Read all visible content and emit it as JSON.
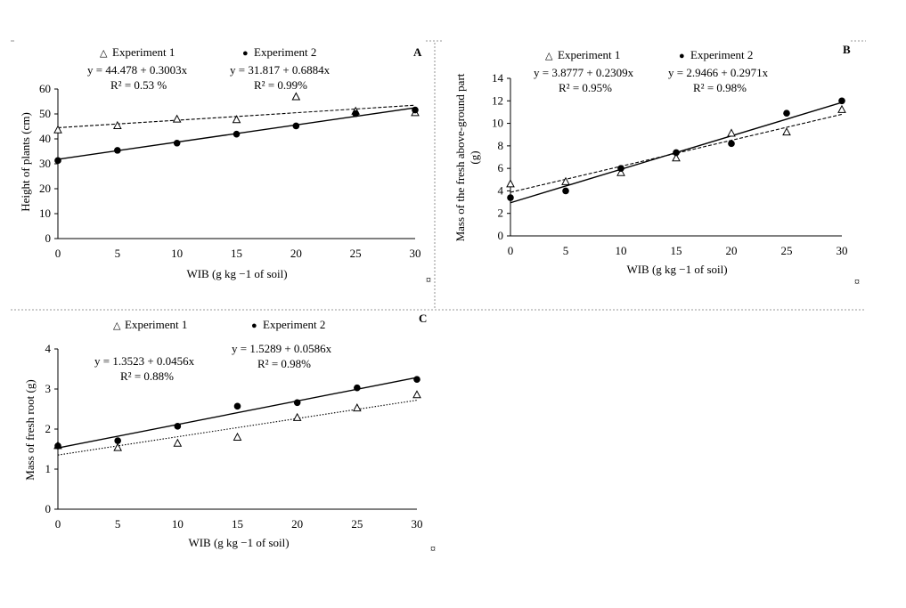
{
  "chart_data": [
    {
      "id": "A",
      "type": "scatter",
      "panel_label": "A",
      "title": "",
      "xlabel": "WIB (g kg −1 of soil)",
      "ylabel": "Height of plants (cm)",
      "x": [
        0,
        5,
        10,
        15,
        20,
        25,
        30
      ],
      "xlim": [
        0,
        30
      ],
      "ylim": [
        0,
        60
      ],
      "xticks": [
        0,
        5,
        10,
        15,
        20,
        25,
        30
      ],
      "yticks": [
        0,
        10,
        20,
        30,
        40,
        50,
        60
      ],
      "grid": false,
      "series": [
        {
          "name": "Experiment 1",
          "marker": "triangle-open",
          "line_style": "dashed",
          "values": [
            43.5,
            45.2,
            47.8,
            47.6,
            56.8,
            51.0,
            50.4
          ],
          "equation": "y = 44.478 + 0.3003x",
          "r2": "R² = 0.53 %",
          "intercept": 44.478,
          "slope": 0.3003
        },
        {
          "name": "Experiment 2",
          "marker": "circle-filled",
          "line_style": "solid",
          "values": [
            31.3,
            35.4,
            38.3,
            41.9,
            45.2,
            50.1,
            51.6
          ],
          "equation": "y = 31.817 + 0.6884x",
          "r2": "R² = 0.99%",
          "intercept": 31.817,
          "slope": 0.6884
        }
      ]
    },
    {
      "id": "B",
      "type": "scatter",
      "panel_label": "B",
      "title": "",
      "xlabel": "WIB (g kg −1 of soil)",
      "ylabel_line1": "Mass of the fresh above-ground part",
      "ylabel_line2": "(g)",
      "x": [
        0,
        5,
        10,
        15,
        20,
        25,
        30
      ],
      "xlim": [
        0,
        30
      ],
      "ylim": [
        0,
        14
      ],
      "xticks": [
        0,
        5,
        10,
        15,
        20,
        25,
        30
      ],
      "yticks": [
        0,
        2,
        4,
        6,
        8,
        10,
        12,
        14
      ],
      "grid": false,
      "series": [
        {
          "name": "Experiment 1",
          "marker": "triangle-open",
          "line_style": "dashed",
          "values": [
            4.6,
            4.8,
            5.6,
            6.9,
            9.1,
            9.2,
            11.2
          ],
          "equation": "y = 3.8777 + 0.2309x",
          "r2": "R² = 0.95%",
          "intercept": 3.8777,
          "slope": 0.2309
        },
        {
          "name": "Experiment 2",
          "marker": "circle-filled",
          "line_style": "solid",
          "values": [
            3.4,
            4.0,
            6.0,
            7.4,
            8.2,
            10.9,
            12.0
          ],
          "equation": "y = 2.9466 + 0.2971x",
          "r2": "R² = 0.98%",
          "intercept": 2.9466,
          "slope": 0.2971
        }
      ]
    },
    {
      "id": "C",
      "type": "scatter",
      "panel_label": "C",
      "title": "",
      "xlabel": "WIB (g kg −1 of soil)",
      "ylabel": "Mass of fresh root (g)",
      "x": [
        0,
        5,
        10,
        15,
        20,
        25,
        30
      ],
      "xlim": [
        0,
        30
      ],
      "ylim": [
        0,
        4
      ],
      "xticks": [
        0,
        5,
        10,
        15,
        20,
        25,
        30
      ],
      "yticks": [
        0,
        1,
        2,
        3,
        4
      ],
      "grid": false,
      "series": [
        {
          "name": "Experiment 1",
          "marker": "triangle-open",
          "line_style": "dotted",
          "values": [
            1.58,
            1.53,
            1.64,
            1.79,
            2.28,
            2.52,
            2.85
          ],
          "equation": "y = 1.3523 + 0.0456x",
          "r2": "R² = 0.88%",
          "intercept": 1.3523,
          "slope": 0.0456
        },
        {
          "name": "Experiment 2",
          "marker": "circle-filled",
          "line_style": "solid",
          "values": [
            1.58,
            1.71,
            2.07,
            2.57,
            2.66,
            3.03,
            3.24
          ],
          "equation": "y = 1.5289 + 0.0586x",
          "r2": "R² = 0.98%",
          "intercept": 1.5289,
          "slope": 0.0586
        }
      ]
    }
  ],
  "figure": {
    "corner_mark": "¤"
  }
}
